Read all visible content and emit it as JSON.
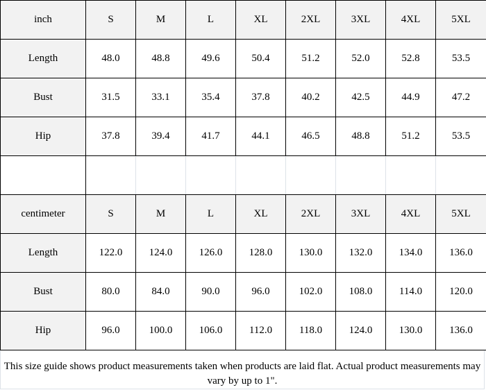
{
  "sizes": [
    "S",
    "M",
    "L",
    "XL",
    "2XL",
    "3XL",
    "4XL",
    "5XL"
  ],
  "tables": [
    {
      "unit": "inch",
      "rows": [
        {
          "label": "Length",
          "values": [
            "48.0",
            "48.8",
            "49.6",
            "50.4",
            "51.2",
            "52.0",
            "52.8",
            "53.5"
          ]
        },
        {
          "label": "Bust",
          "values": [
            "31.5",
            "33.1",
            "35.4",
            "37.8",
            "40.2",
            "42.5",
            "44.9",
            "47.2"
          ]
        },
        {
          "label": "Hip",
          "values": [
            "37.8",
            "39.4",
            "41.7",
            "44.1",
            "46.5",
            "48.8",
            "51.2",
            "53.5"
          ]
        }
      ]
    },
    {
      "unit": "centimeter",
      "rows": [
        {
          "label": "Length",
          "values": [
            "122.0",
            "124.0",
            "126.0",
            "128.0",
            "130.0",
            "132.0",
            "134.0",
            "136.0"
          ]
        },
        {
          "label": "Bust",
          "values": [
            "80.0",
            "84.0",
            "90.0",
            "96.0",
            "102.0",
            "108.0",
            "114.0",
            "120.0"
          ]
        },
        {
          "label": "Hip",
          "values": [
            "96.0",
            "100.0",
            "106.0",
            "112.0",
            "118.0",
            "124.0",
            "130.0",
            "136.0"
          ]
        }
      ]
    }
  ],
  "note": "This size guide shows product measurements taken when products are laid flat. Actual product measurements may vary by up to 1\"."
}
